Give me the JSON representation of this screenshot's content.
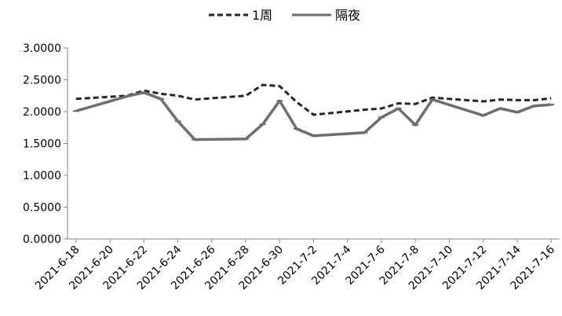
{
  "chart_data": {
    "type": "line",
    "title": "",
    "xlabel": "",
    "ylabel": "",
    "ylim": [
      0,
      3
    ],
    "yticks": [
      "0.0000",
      "0.5000",
      "1.0000",
      "1.5000",
      "2.0000",
      "2.5000",
      "3.0000"
    ],
    "xticks": [
      "2021-6-18",
      "2021-6-20",
      "2021-6-22",
      "2021-6-24",
      "2021-6-26",
      "2021-6-28",
      "2021-6-30",
      "2021-7-2",
      "2021-7-4",
      "2021-7-6",
      "2021-7-8",
      "2021-7-10",
      "2021-7-12",
      "2021-7-14",
      "2021-7-16"
    ],
    "legend_position": "top",
    "grid": false,
    "x": [
      "2021-6-18",
      "2021-6-21",
      "2021-6-22",
      "2021-6-23",
      "2021-6-24",
      "2021-6-25",
      "2021-6-28",
      "2021-6-29",
      "2021-6-30",
      "2021-7-1",
      "2021-7-2",
      "2021-7-5",
      "2021-7-6",
      "2021-7-7",
      "2021-7-8",
      "2021-7-9",
      "2021-7-12",
      "2021-7-13",
      "2021-7-14",
      "2021-7-15",
      "2021-7-16"
    ],
    "series": [
      {
        "name": "1周",
        "color": "#262626",
        "dash": true,
        "values": [
          2.2,
          2.25,
          2.33,
          2.28,
          2.25,
          2.19,
          2.25,
          2.42,
          2.4,
          2.15,
          1.95,
          2.03,
          2.05,
          2.13,
          2.12,
          2.22,
          2.16,
          2.19,
          2.18,
          2.18,
          2.21
        ]
      },
      {
        "name": "隔夜",
        "color": "#6e6e6e",
        "dash": false,
        "values": [
          2.01,
          2.24,
          2.3,
          2.2,
          1.85,
          1.56,
          1.57,
          1.8,
          2.17,
          1.73,
          1.62,
          1.67,
          1.91,
          2.05,
          1.79,
          2.19,
          1.94,
          2.05,
          1.99,
          2.09,
          2.11
        ]
      }
    ]
  }
}
